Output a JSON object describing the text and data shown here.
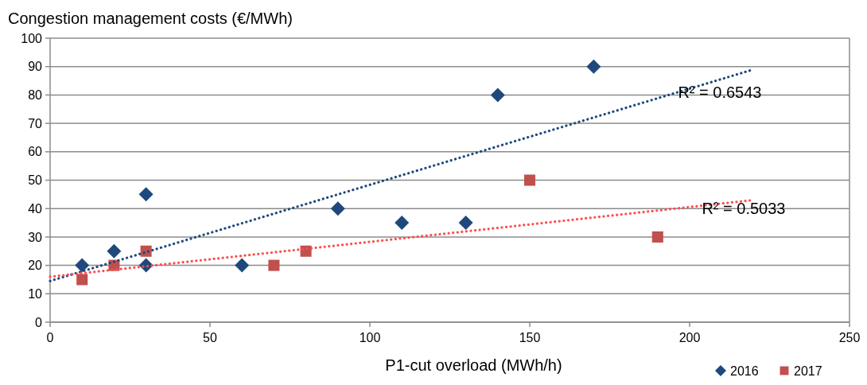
{
  "chart_data": {
    "type": "scatter",
    "ylabel": "Congestion management costs (€/MWh)",
    "xlabel": "P1-cut overload (MWh/h)",
    "xlim": [
      0,
      250
    ],
    "xticks": [
      0,
      50,
      100,
      150,
      200,
      250
    ],
    "ylim": [
      0,
      100
    ],
    "yticks": [
      0,
      10,
      20,
      30,
      40,
      50,
      60,
      70,
      80,
      90,
      100
    ],
    "grid": "y",
    "legend": "bottom right",
    "series": [
      {
        "name": "2016",
        "color": "#1f497d",
        "marker": "diamond",
        "x": [
          10,
          20,
          30,
          30,
          60,
          90,
          110,
          130,
          140,
          170
        ],
        "values": [
          20,
          25,
          45,
          20,
          20,
          40,
          35,
          35,
          80,
          90
        ]
      },
      {
        "name": "2017",
        "color": "#c0504d",
        "marker": "square",
        "x": [
          10,
          20,
          30,
          70,
          80,
          150,
          190
        ],
        "values": [
          15,
          20,
          25,
          20,
          25,
          50,
          30
        ]
      },
      {
        "type": "line",
        "color": "#1f497d",
        "line_style": "dotted",
        "marker": "none",
        "x": [
          0,
          220
        ],
        "values": [
          14.5,
          89
        ]
      },
      {
        "type": "line",
        "color": "#ff4d4d",
        "line_style": "dotted",
        "marker": "none",
        "x": [
          0,
          220
        ],
        "values": [
          16,
          43
        ]
      }
    ],
    "annotations": [
      "R² = 0.6543",
      "R² = 0.5033"
    ]
  }
}
